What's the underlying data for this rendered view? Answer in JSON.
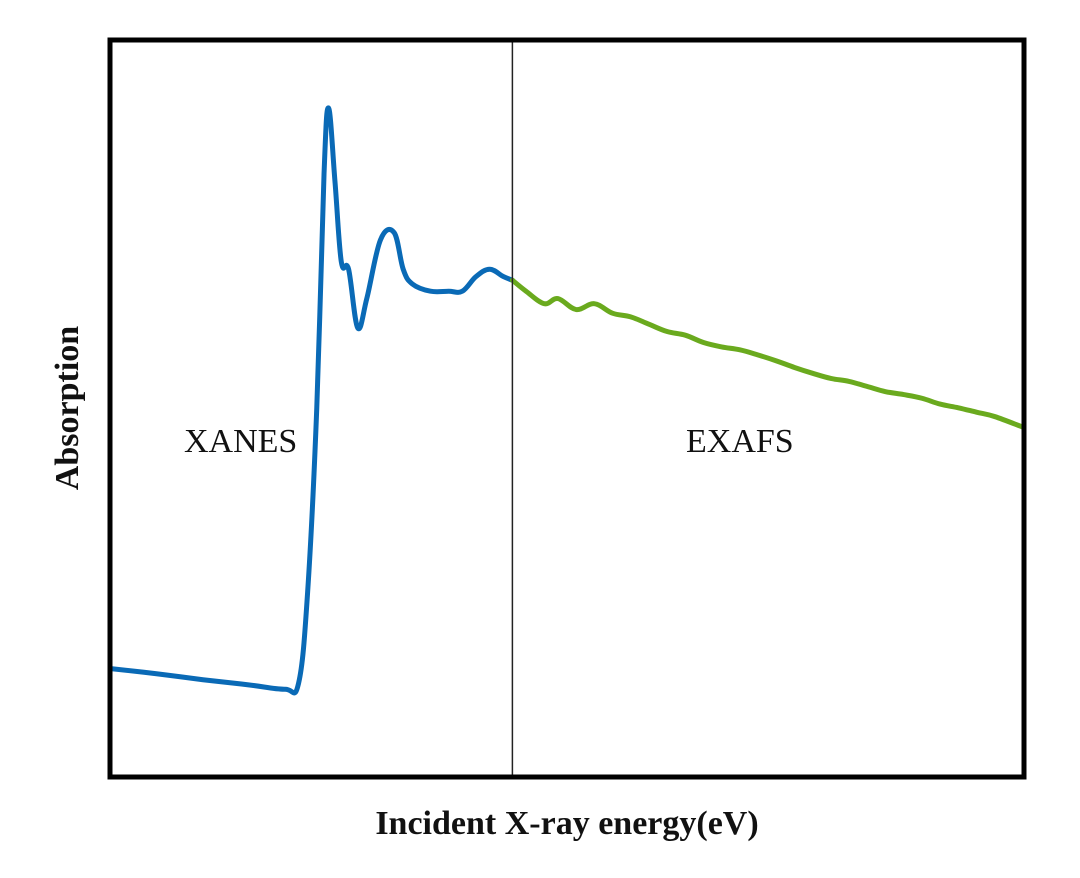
{
  "chart_data": {
    "type": "line",
    "title": "",
    "xlabel": "Incident X-ray energy(eV)",
    "ylabel": "Absorption",
    "grid": false,
    "legend": "none",
    "ticks": "none",
    "xlim": [
      0,
      100
    ],
    "ylim": [
      0,
      100
    ],
    "regions": [
      {
        "name": "XANES",
        "x_range": [
          0,
          44
        ],
        "color": "#0a6ab6"
      },
      {
        "name": "EXAFS",
        "x_range": [
          44,
          100
        ],
        "color": "#6aaa1e"
      }
    ],
    "divider_x": 44,
    "series": [
      {
        "name": "XANES",
        "color": "#0a6ab6",
        "x": [
          0,
          5,
          10,
          15,
          19,
          20.5,
          21.5,
          22.5,
          23.3,
          23.8,
          24.5,
          25.2,
          26,
          27,
          28,
          29.5,
          31,
          32,
          33,
          35,
          37,
          38.5,
          40,
          41.5,
          43,
          44
        ],
        "y": [
          14.5,
          13.8,
          13.0,
          12.3,
          11.7,
          12.5,
          25,
          50,
          82,
          91,
          81,
          70,
          69,
          61,
          65,
          73,
          74,
          69,
          67,
          66,
          66,
          66,
          68,
          69,
          68,
          67.5
        ]
      },
      {
        "name": "EXAFS",
        "color": "#6aaa1e",
        "x": [
          44,
          45.5,
          47.5,
          49,
          51,
          53,
          55,
          57,
          59,
          61,
          63,
          65,
          67,
          69,
          71,
          73,
          75,
          77,
          79,
          81,
          83,
          85,
          87,
          89,
          91,
          93,
          95,
          97,
          100
        ],
        "y": [
          67.5,
          66,
          64.3,
          65,
          63.5,
          64.3,
          63,
          62.5,
          61.5,
          60.5,
          60,
          59,
          58.4,
          58,
          57.3,
          56.5,
          55.6,
          54.8,
          54.1,
          53.7,
          53.0,
          52.3,
          51.9,
          51.4,
          50.6,
          50.1,
          49.5,
          48.9,
          47.5
        ]
      }
    ],
    "annotations": [
      {
        "text": "XANES",
        "x": 15,
        "y": 45
      },
      {
        "text": "EXAFS",
        "x": 70,
        "y": 45
      }
    ]
  },
  "labels": {
    "xanes": "XANES",
    "exafs": "EXAFS",
    "xaxis": "Incident X-ray energy(eV)",
    "yaxis": "Absorption"
  }
}
